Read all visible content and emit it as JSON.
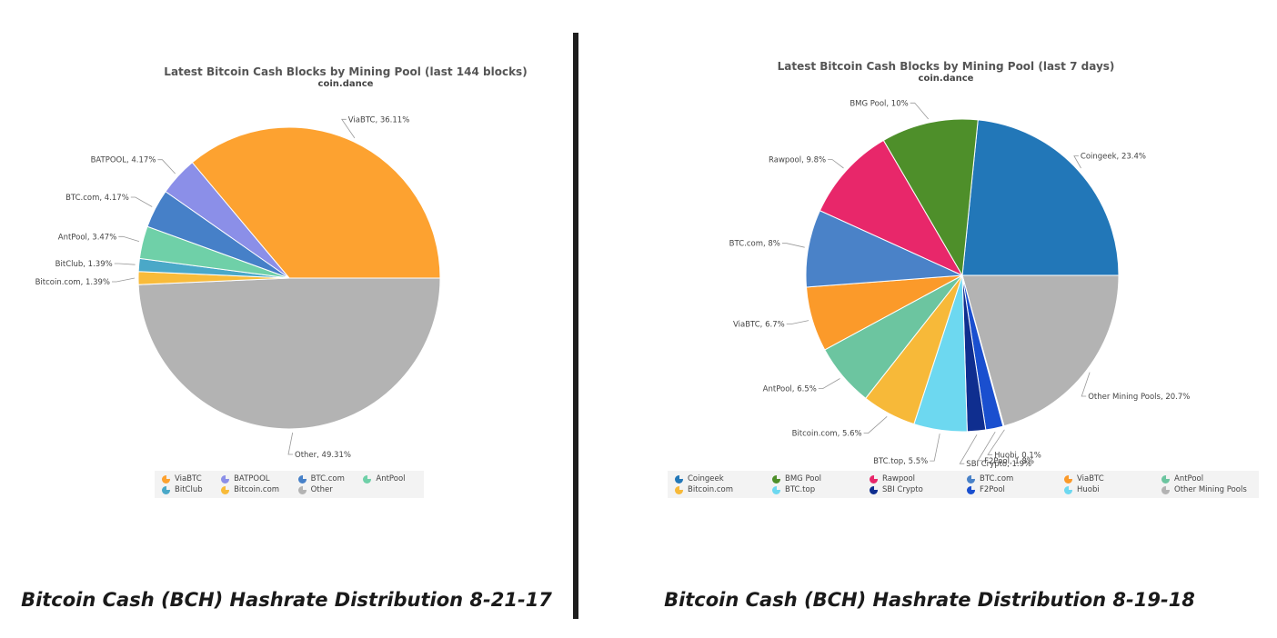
{
  "chart_data": [
    {
      "type": "pie",
      "title": "Latest Bitcoin Cash Blocks by Mining Pool (last 144 blocks)",
      "subtitle": "coin.dance",
      "slices": [
        {
          "name": "ViaBTC",
          "value": 36.11,
          "label": "ViaBTC, 36.11%",
          "color": "#fda230"
        },
        {
          "name": "Other",
          "value": 49.31,
          "label": "Other, 49.31%",
          "color": "#b3b3b3"
        },
        {
          "name": "Bitcoin.com",
          "value": 1.39,
          "label": "Bitcoin.com, 1.39%",
          "color": "#f8bb3a"
        },
        {
          "name": "BitClub",
          "value": 1.39,
          "label": "BitClub, 1.39%",
          "color": "#4aa8c8"
        },
        {
          "name": "AntPool",
          "value": 3.47,
          "label": "AntPool, 3.47%",
          "color": "#6fd0a8"
        },
        {
          "name": "BTC.com",
          "value": 4.17,
          "label": "BTC.com, 4.17%",
          "color": "#4680c8"
        },
        {
          "name": "BATPOOL",
          "value": 4.17,
          "label": "BATPOOL, 4.17%",
          "color": "#8b8fe8"
        }
      ],
      "legend": [
        "ViaBTC",
        "BATPOOL",
        "BTC.com",
        "AntPool",
        "BitClub",
        "Bitcoin.com",
        "Other"
      ],
      "legend_placement": "bottom"
    },
    {
      "type": "pie",
      "title": "Latest Bitcoin Cash Blocks by Mining Pool (last 7 days)",
      "subtitle": "coin.dance",
      "slices": [
        {
          "name": "Coingeek",
          "value": 23.4,
          "label": "Coingeek, 23.4%",
          "color": "#2277b8"
        },
        {
          "name": "Other Mining Pools",
          "value": 20.7,
          "label": "Other Mining Pools, 20.7%",
          "color": "#b3b3b3"
        },
        {
          "name": "Huobi",
          "value": 0.1,
          "label": "Huobi, 0.1%",
          "color": "#6dd8f0"
        },
        {
          "name": "F2Pool",
          "value": 1.8,
          "label": "F2Pool, 1.8%",
          "color": "#1a4fcf"
        },
        {
          "name": "SBI Crypto",
          "value": 1.9,
          "label": "SBI Crypto, 1.9%",
          "color": "#0f2e8f"
        },
        {
          "name": "BTC.top",
          "value": 5.5,
          "label": "BTC.top, 5.5%",
          "color": "#6dd8f0"
        },
        {
          "name": "Bitcoin.com",
          "value": 5.6,
          "label": "Bitcoin.com, 5.6%",
          "color": "#f7b939"
        },
        {
          "name": "AntPool",
          "value": 6.5,
          "label": "AntPool, 6.5%",
          "color": "#6cc5a0"
        },
        {
          "name": "ViaBTC",
          "value": 6.7,
          "label": "ViaBTC, 6.7%",
          "color": "#fb9a2a"
        },
        {
          "name": "BTC.com",
          "value": 8,
          "label": "BTC.com, 8%",
          "color": "#4a82c8"
        },
        {
          "name": "Rawpool",
          "value": 9.8,
          "label": "Rawpool, 9.8%",
          "color": "#e8276a"
        },
        {
          "name": "BMG Pool",
          "value": 10,
          "label": "BMG Pool, 10%",
          "color": "#4e8f2a"
        }
      ],
      "legend": [
        "Coingeek",
        "BMG Pool",
        "Rawpool",
        "BTC.com",
        "ViaBTC",
        "AntPool",
        "Bitcoin.com",
        "BTC.top",
        "SBI Crypto",
        "F2Pool",
        "Huobi",
        "Other Mining Pools"
      ],
      "legend_placement": "bottom"
    }
  ],
  "captions": {
    "left": "Bitcoin Cash (BCH) Hashrate Distribution 8-21-17",
    "right": "Bitcoin Cash (BCH) Hashrate Distribution 8-19-18"
  }
}
